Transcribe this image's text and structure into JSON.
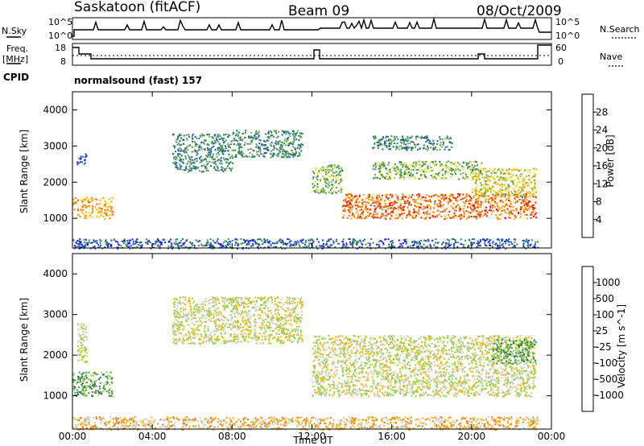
{
  "header": {
    "station": "Saskatoon (fitACF)",
    "beam": "Beam 09",
    "date": "08/Oct/2009"
  },
  "nsky_panel": {
    "left_label": "N.Sky",
    "right_label": "N.Search",
    "left_ticks": [
      "10^5",
      "10^0"
    ],
    "right_ticks": [
      "10^5",
      "10^0"
    ]
  },
  "freq_panel": {
    "left_label_1": "Freq.",
    "left_label_2": "[MHz]",
    "right_label": "Nave",
    "left_ticks": [
      "18",
      "8"
    ],
    "right_ticks": [
      "60",
      "0"
    ]
  },
  "cpid": {
    "label": "CPID",
    "value": "normalsound (fast)  157"
  },
  "x_axis": {
    "label": "Time UT",
    "ticks": [
      "00:00",
      "04:00",
      "08:00",
      "12:00",
      "16:00",
      "20:00",
      "00:00"
    ]
  },
  "colors": {
    "background": "#ffffff",
    "axis": "#000000",
    "ground_scatter": "#c8c8c8"
  },
  "chart_data": [
    {
      "type": "heatmap",
      "panel": "power",
      "ylabel": "Slant Range [km]",
      "y_ticks": [
        "1000",
        "2000",
        "3000",
        "4000"
      ],
      "ylim": [
        180,
        4500
      ],
      "xlim_hours": [
        0,
        24
      ],
      "colorbar": {
        "label": "Power [dB]",
        "ticks": [
          "4",
          "8",
          "12",
          "16",
          "20",
          "24",
          "28"
        ],
        "colors": [
          "#1a1aff",
          "#1e5aa8",
          "#2e8b57",
          "#6aa84f",
          "#f0e020",
          "#f6a800",
          "#f07010",
          "#e02000"
        ]
      },
      "echo_regions": [
        {
          "t0": 0.0,
          "t1": 2.0,
          "r0": 1000,
          "r1": 1600,
          "level": 5
        },
        {
          "t0": 0.2,
          "t1": 0.7,
          "r0": 2500,
          "r1": 2800,
          "level": 1
        },
        {
          "t0": 5.0,
          "t1": 8.0,
          "r0": 2300,
          "r1": 3350,
          "level": 2
        },
        {
          "t0": 8.0,
          "t1": 11.5,
          "r0": 2700,
          "r1": 3450,
          "level": 2
        },
        {
          "t0": 12.0,
          "t1": 13.5,
          "r0": 1700,
          "r1": 2500,
          "level": 3
        },
        {
          "t0": 13.5,
          "t1": 23.2,
          "r0": 1000,
          "r1": 1700,
          "level": 6
        },
        {
          "t0": 15.0,
          "t1": 20.5,
          "r0": 2100,
          "r1": 2600,
          "level": 3
        },
        {
          "t0": 15.0,
          "t1": 19.0,
          "r0": 2900,
          "r1": 3300,
          "level": 2
        },
        {
          "t0": 20.0,
          "t1": 23.2,
          "r0": 1600,
          "r1": 2400,
          "level": 4
        },
        {
          "t0": 0.0,
          "t1": 23.3,
          "r0": 180,
          "r1": 450,
          "level": 1
        }
      ]
    },
    {
      "type": "heatmap",
      "panel": "velocity",
      "ylabel": "Slant Range [km]",
      "y_ticks": [
        "1000",
        "2000",
        "3000",
        "4000"
      ],
      "ylim": [
        180,
        4500
      ],
      "xlim_hours": [
        0,
        24
      ],
      "colorbar": {
        "label": "Velocity [m s^-1]",
        "ticks": [
          "1000",
          "500",
          "100",
          "25",
          "-25",
          "-100",
          "-500",
          "-1000"
        ],
        "colors": [
          "#2020a0",
          "#2e6a4a",
          "#3c9a3c",
          "#8ad04a",
          "#c8c8c8",
          "#f6b800",
          "#f07810",
          "#e02010",
          "#d00000"
        ]
      },
      "echo_regions": [
        {
          "t0": 0.0,
          "t1": 2.0,
          "r0": 1000,
          "r1": 1600,
          "level": 2
        },
        {
          "t0": 0.2,
          "t1": 0.7,
          "r0": 1800,
          "r1": 2800,
          "level": 4
        },
        {
          "t0": 5.0,
          "t1": 11.5,
          "r0": 2300,
          "r1": 3450,
          "level": 4
        },
        {
          "t0": 12.0,
          "t1": 23.2,
          "r0": 1000,
          "r1": 2500,
          "level": 4
        },
        {
          "t0": 21.0,
          "t1": 23.2,
          "r0": 1800,
          "r1": 2400,
          "level": 2
        },
        {
          "t0": 0.0,
          "t1": 23.3,
          "r0": 180,
          "r1": 500,
          "level": 5
        }
      ]
    }
  ]
}
